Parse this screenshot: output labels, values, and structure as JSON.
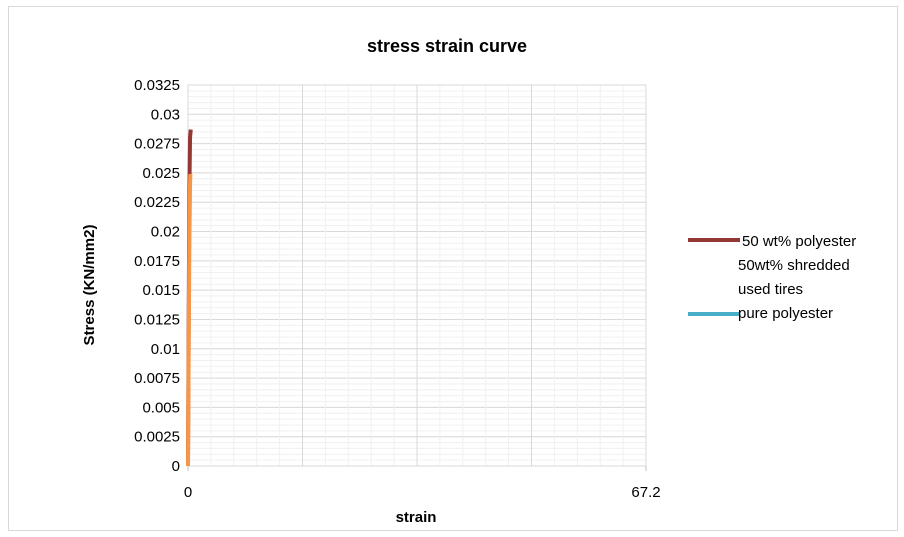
{
  "chart_data": {
    "type": "line",
    "title": "stress strain curve",
    "xlabel": "strain",
    "ylabel": "Stress (KN/mm2)",
    "xlim": [
      0,
      67.2
    ],
    "ylim": [
      0,
      0.0325
    ],
    "x_tick_labels": [
      "0",
      "67.2"
    ],
    "y_tick_labels": [
      "0",
      "0.0025",
      "0.005",
      "0.0075",
      "0.01",
      "0.0125",
      "0.015",
      "0.0175",
      "0.02",
      "0.0225",
      "0.025",
      "0.0275",
      "0.03",
      "0.0325"
    ],
    "grid": true,
    "legend_position": "right",
    "series": [
      {
        "name": "50 wt% polyester 50wt% shredded used tires",
        "color": "#953735",
        "x": [
          0,
          0.1,
          0.2,
          0.3,
          0.4
        ],
        "y": [
          0,
          0.0125,
          0.0235,
          0.028,
          0.0287
        ]
      },
      {
        "name": "pure polyester",
        "color": "#4bacc6",
        "plot_color": "#f79646",
        "x": [
          0,
          0.1,
          0.2,
          0.3,
          0.35
        ],
        "y": [
          0,
          0.01,
          0.019,
          0.024,
          0.0249
        ]
      }
    ]
  },
  "legend": {
    "item1_lines": [
      "50 wt% polyester",
      "50wt% shredded",
      "used tires"
    ],
    "item2_label": "pure polyester"
  }
}
